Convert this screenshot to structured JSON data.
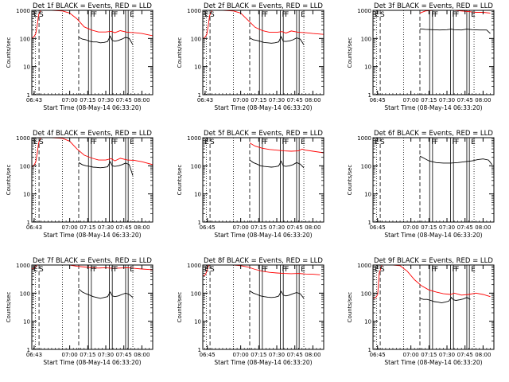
{
  "figure": {
    "xlabel": "Start Time (08-May-14 06:33:20)",
    "ylabel": "Counts/sec",
    "x_range_minutes": [
      -0.5,
      33
    ],
    "ylim": [
      1,
      1000
    ],
    "y_scale": "log",
    "xticks": [
      {
        "min": 0.15,
        "label": "06:43"
      },
      {
        "min": 0.75,
        "label": "06:45"
      },
      {
        "min": 10,
        "label": "07:00"
      },
      {
        "min": 15,
        "label": "07:15"
      },
      {
        "min": 20,
        "label": "07:30"
      },
      {
        "min": 25,
        "label": "07:45"
      },
      {
        "min": 30,
        "label": "08:00"
      }
    ],
    "yticks": [
      {
        "v": 1,
        "label": "1"
      },
      {
        "v": 10,
        "label": "10"
      },
      {
        "v": 100,
        "label": "100"
      },
      {
        "v": 1000,
        "label": "1000"
      }
    ],
    "colors": {
      "events": "#000000",
      "lld": "#ff0000",
      "axes": "#000000"
    }
  },
  "chart_data": [
    {
      "type": "line",
      "title": "Det 1f BLACK = Events, RED = LLD",
      "xtick_labels": [
        "06:43",
        "07:00",
        "07:15",
        "07:30",
        "07:45",
        "08:00"
      ],
      "marker_labels": [
        "E",
        "S",
        "F",
        "F",
        "F",
        "F",
        "E"
      ],
      "markers": {
        "dashed": [
          1.5,
          12.5
        ],
        "dotted": [
          0.5,
          8.0,
          27.5
        ],
        "solid": [
          15.2,
          16.0,
          21.0,
          21.8,
          25.5,
          26.2
        ]
      },
      "series": [
        {
          "color": "#ff0000",
          "x": [
            -0.5,
            0.2,
            0.6,
            1.0,
            1.4,
            2.0,
            3.0,
            5.0,
            8.0,
            10.0,
            12.0,
            14.0,
            16.0,
            18.0,
            20.0,
            21.5,
            22.5,
            24.0,
            26.0,
            28.0,
            30.0,
            33.0
          ],
          "values": [
            100,
            120,
            150,
            300,
            700,
            1000,
            1000,
            1000,
            950,
            800,
            500,
            260,
            200,
            170,
            170,
            180,
            160,
            190,
            165,
            160,
            150,
            125
          ]
        },
        {
          "color": "#000000",
          "x": [
            12.5,
            13.5,
            14.5,
            15.5,
            16.5,
            17.5,
            18.5,
            19.5,
            20.5,
            21.2,
            21.8,
            22.5,
            23.5,
            24.5,
            25.5,
            26.5,
            27.5
          ],
          "values": [
            110,
            95,
            90,
            80,
            75,
            75,
            70,
            72,
            78,
            120,
            85,
            80,
            85,
            95,
            110,
            100,
            60
          ]
        }
      ]
    },
    {
      "type": "line",
      "title": "Det 2f BLACK = Events, RED = LLD",
      "xtick_labels": [
        "06:43",
        "07:00",
        "07:15",
        "07:30",
        "07:45",
        "08:00"
      ],
      "marker_labels": [
        "E",
        "S",
        "F",
        "F",
        "F",
        "F",
        "E"
      ],
      "markers": {
        "dashed": [
          1.5,
          12.5
        ],
        "dotted": [
          0.5,
          8.0,
          27.5
        ],
        "solid": [
          15.2,
          16.0,
          21.0,
          21.8,
          25.5,
          26.2
        ]
      },
      "series": [
        {
          "color": "#ff0000",
          "x": [
            -0.5,
            0.2,
            0.6,
            1.0,
            1.4,
            2.0,
            3.0,
            5.0,
            8.0,
            10.0,
            12.0,
            14.0,
            16.0,
            18.0,
            20.0,
            21.5,
            22.5,
            24.0,
            26.0,
            28.0,
            30.0,
            33.0
          ],
          "values": [
            95,
            115,
            140,
            280,
            650,
            1000,
            1000,
            1000,
            950,
            800,
            450,
            250,
            190,
            165,
            165,
            175,
            155,
            185,
            165,
            160,
            150,
            140
          ]
        },
        {
          "color": "#000000",
          "x": [
            12.5,
            13.5,
            14.5,
            15.5,
            16.5,
            17.5,
            18.5,
            19.5,
            20.5,
            21.2,
            21.8,
            22.5,
            23.5,
            24.5,
            25.5,
            26.5,
            27.5
          ],
          "values": [
            105,
            90,
            85,
            78,
            72,
            70,
            68,
            70,
            75,
            115,
            80,
            78,
            82,
            90,
            105,
            95,
            60
          ]
        }
      ]
    },
    {
      "type": "line",
      "title": "Det 3f BLACK = Events, RED = LLD",
      "xtick_labels": [
        "06:45",
        "07:00",
        "07:15",
        "07:30",
        "07:45",
        "08:00"
      ],
      "marker_labels": [
        "E",
        "S",
        "F",
        "F",
        "F",
        "F",
        "E"
      ],
      "markers": {
        "dashed": [
          1.5,
          12.5
        ],
        "dotted": [
          0.5,
          8.0,
          27.5
        ],
        "solid": [
          15.2,
          16.0,
          21.0,
          21.8,
          25.5,
          26.2
        ]
      },
      "series": [
        {
          "color": "#ff0000",
          "x": [
            12.5,
            14.0,
            16.0,
            18.0,
            20.0,
            22.0,
            24.0,
            26.0,
            28.0,
            30.0,
            32.0
          ],
          "values": [
            800,
            950,
            1000,
            1000,
            1000,
            1000,
            950,
            900,
            850,
            850,
            800
          ]
        },
        {
          "color": "#000000",
          "x": [
            12.5,
            14.0,
            16.0,
            18.0,
            20.0,
            21.2,
            22.0,
            24.0,
            25.5,
            27.0,
            29.0,
            31.0,
            32.0
          ],
          "values": [
            220,
            210,
            205,
            200,
            205,
            215,
            205,
            200,
            215,
            205,
            200,
            200,
            150
          ]
        }
      ]
    },
    {
      "type": "line",
      "title": "Det 4f BLACK = Events, RED = LLD",
      "xtick_labels": [
        "06:43",
        "07:00",
        "07:15",
        "07:30",
        "07:45",
        "08:00"
      ],
      "marker_labels": [
        "E",
        "S",
        "F",
        "F",
        "F",
        "F",
        "E"
      ],
      "markers": {
        "dashed": [
          1.5,
          12.5
        ],
        "dotted": [
          0.5,
          8.0,
          27.5
        ],
        "solid": [
          15.2,
          16.0,
          21.0,
          21.8,
          25.5,
          26.2
        ]
      },
      "series": [
        {
          "color": "#ff0000",
          "x": [
            -0.5,
            0.2,
            0.6,
            1.0,
            1.4,
            2.0,
            3.0,
            5.0,
            8.0,
            10.0,
            12.0,
            14.0,
            16.0,
            18.0,
            20.0,
            21.5,
            22.5,
            24.0,
            26.0,
            28.0,
            30.0,
            33.0
          ],
          "values": [
            90,
            110,
            140,
            280,
            650,
            1000,
            1000,
            1000,
            950,
            750,
            400,
            240,
            190,
            160,
            160,
            180,
            150,
            185,
            160,
            155,
            140,
            110
          ]
        },
        {
          "color": "#000000",
          "x": [
            12.5,
            13.5,
            14.5,
            15.5,
            16.5,
            17.5,
            18.5,
            19.5,
            20.5,
            21.2,
            21.8,
            22.5,
            23.5,
            24.5,
            25.5,
            26.5,
            27.5
          ],
          "values": [
            130,
            110,
            100,
            95,
            90,
            88,
            85,
            88,
            92,
            140,
            100,
            95,
            100,
            110,
            125,
            110,
            45
          ]
        }
      ]
    },
    {
      "type": "line",
      "title": "Det 5f BLACK = Events, RED = LLD",
      "xtick_labels": [
        "06:45",
        "07:00",
        "07:15",
        "07:30",
        "07:45",
        "08:00"
      ],
      "marker_labels": [
        "E",
        "S",
        "F",
        "F",
        "F",
        "F",
        "E"
      ],
      "markers": {
        "dashed": [
          1.5,
          12.5
        ],
        "dotted": [
          0.5,
          8.0,
          27.5
        ],
        "solid": [
          15.2,
          16.0,
          21.0,
          21.8,
          25.5,
          26.2
        ]
      },
      "series": [
        {
          "color": "#ff0000",
          "x": [
            12.5,
            14.0,
            16.0,
            18.0,
            20.0,
            22.0,
            24.0,
            26.0,
            27.0,
            28.0,
            30.0,
            33.0
          ],
          "values": [
            650,
            500,
            420,
            380,
            360,
            340,
            330,
            340,
            390,
            360,
            330,
            290
          ]
        },
        {
          "color": "#000000",
          "x": [
            12.5,
            13.5,
            14.5,
            15.5,
            16.5,
            17.5,
            18.5,
            19.5,
            20.5,
            21.2,
            21.8,
            22.5,
            23.5,
            24.5,
            25.5,
            26.5,
            27.5
          ],
          "values": [
            160,
            130,
            115,
            100,
            95,
            92,
            90,
            92,
            98,
            145,
            100,
            95,
            100,
            110,
            130,
            115,
            85
          ]
        }
      ]
    },
    {
      "type": "line",
      "title": "Det 6f BLACK = Events, RED = LLD",
      "xtick_labels": [
        "06:45",
        "07:00",
        "07:15",
        "07:30",
        "07:45",
        "08:00"
      ],
      "marker_labels": [
        "E",
        "S",
        "F",
        "F",
        "F",
        "F",
        "E"
      ],
      "markers": {
        "dashed": [
          1.5,
          12.5
        ],
        "dotted": [
          0.5,
          8.0,
          27.5
        ],
        "solid": [
          15.2,
          16.0,
          21.0,
          21.8,
          25.5,
          26.2
        ]
      },
      "series": [
        {
          "color": "#000000",
          "x": [
            12.5,
            13.5,
            15.0,
            17.0,
            19.0,
            21.0,
            23.0,
            25.0,
            27.0,
            28.5,
            30.0,
            31.5,
            32.5
          ],
          "values": [
            220,
            190,
            150,
            130,
            125,
            125,
            130,
            140,
            150,
            165,
            175,
            160,
            110
          ]
        }
      ]
    },
    {
      "type": "line",
      "title": "Det 7f BLACK = Events, RED = LLD",
      "xtick_labels": [
        "06:43",
        "07:00",
        "07:15",
        "07:30",
        "07:45",
        "08:00"
      ],
      "marker_labels": [
        "E",
        "S",
        "F",
        "F",
        "F",
        "F",
        "E"
      ],
      "markers": {
        "dashed": [
          1.5,
          12.5
        ],
        "dotted": [
          0.5,
          8.0,
          27.5
        ],
        "solid": [
          15.2,
          16.0,
          21.0,
          21.8,
          25.5,
          26.2
        ]
      },
      "series": [
        {
          "color": "#ff0000",
          "x": [
            -0.5,
            0.2,
            0.6,
            1.0,
            1.4,
            2.0,
            3.0,
            5.0,
            8.0,
            10.0,
            12.0,
            14.0,
            16.0,
            18.0,
            20.0,
            22.0,
            24.0,
            26.0,
            28.0,
            30.0,
            33.0
          ],
          "values": [
            700,
            800,
            900,
            1000,
            1000,
            1000,
            1000,
            1000,
            1000,
            1000,
            900,
            850,
            800,
            780,
            800,
            760,
            780,
            800,
            760,
            720,
            680
          ]
        },
        {
          "color": "#000000",
          "x": [
            12.5,
            13.5,
            14.5,
            15.5,
            16.5,
            17.5,
            18.5,
            19.5,
            20.5,
            21.2,
            21.8,
            22.5,
            23.5,
            24.5,
            25.5,
            26.5,
            27.5
          ],
          "values": [
            140,
            110,
            95,
            85,
            75,
            70,
            65,
            70,
            75,
            110,
            80,
            75,
            80,
            90,
            100,
            90,
            70
          ]
        }
      ]
    },
    {
      "type": "line",
      "title": "Det 8f BLACK = Events, RED = LLD",
      "xtick_labels": [
        "06:45",
        "07:00",
        "07:15",
        "07:30",
        "07:45",
        "08:00"
      ],
      "marker_labels": [
        "E",
        "S",
        "F",
        "F",
        "F",
        "F",
        "E"
      ],
      "markers": {
        "dashed": [
          1.5,
          12.5
        ],
        "dotted": [
          0.5,
          8.0,
          27.5
        ],
        "solid": [
          15.2,
          16.0,
          21.0,
          21.8,
          25.5,
          26.2
        ]
      },
      "series": [
        {
          "color": "#ff0000",
          "x": [
            -0.5,
            0.2,
            0.6,
            1.0,
            1.4,
            2.0,
            3.0,
            5.0,
            8.0,
            10.0,
            12.0,
            14.0,
            16.0,
            18.0,
            20.0,
            22.0,
            24.0,
            26.0,
            28.0,
            30.0,
            32.0
          ],
          "values": [
            400,
            450,
            600,
            900,
            1000,
            1000,
            1000,
            1000,
            1000,
            950,
            850,
            700,
            600,
            550,
            520,
            500,
            490,
            500,
            480,
            470,
            450
          ]
        },
        {
          "color": "#000000",
          "x": [
            12.5,
            13.5,
            14.5,
            15.5,
            16.5,
            17.5,
            18.5,
            19.5,
            20.5,
            21.2,
            21.8,
            22.5,
            23.5,
            24.5,
            25.5,
            26.5,
            27.5
          ],
          "values": [
            120,
            100,
            90,
            80,
            75,
            72,
            70,
            72,
            78,
            115,
            85,
            80,
            85,
            95,
            105,
            95,
            65
          ]
        }
      ]
    },
    {
      "type": "line",
      "title": "Det 9f BLACK = Events, RED = LLD",
      "xtick_labels": [
        "06:45",
        "07:00",
        "07:15",
        "07:30",
        "07:45",
        "08:00"
      ],
      "marker_labels": [
        "E",
        "S",
        "F",
        "F",
        "F",
        "F",
        "E"
      ],
      "markers": {
        "dashed": [
          1.5,
          12.5
        ],
        "dotted": [
          0.5,
          8.0,
          27.5
        ],
        "solid": [
          15.2,
          16.0,
          21.0,
          21.8,
          25.5,
          26.2
        ]
      },
      "series": [
        {
          "color": "#ff0000",
          "x": [
            -0.5,
            0.3,
            0.8,
            1.2,
            2.0,
            3.0,
            5.0,
            7.0,
            9.0,
            11.0,
            13.0,
            15.0,
            17.0,
            19.0,
            21.0,
            22.0,
            24.0,
            26.0,
            28.0,
            30.0,
            32.0
          ],
          "values": [
            65,
            70,
            90,
            500,
            1000,
            1000,
            1000,
            950,
            600,
            300,
            180,
            130,
            110,
            95,
            90,
            100,
            85,
            90,
            100,
            90,
            75
          ]
        },
        {
          "color": "#000000",
          "x": [
            12.5,
            13.5,
            14.5,
            15.5,
            16.5,
            17.5,
            18.5,
            19.5,
            20.5,
            21.2,
            21.8,
            22.5,
            23.5,
            24.5,
            25.5,
            26.5
          ],
          "values": [
            65,
            60,
            60,
            55,
            50,
            48,
            45,
            48,
            52,
            70,
            58,
            55,
            58,
            62,
            70,
            60
          ]
        }
      ]
    }
  ]
}
